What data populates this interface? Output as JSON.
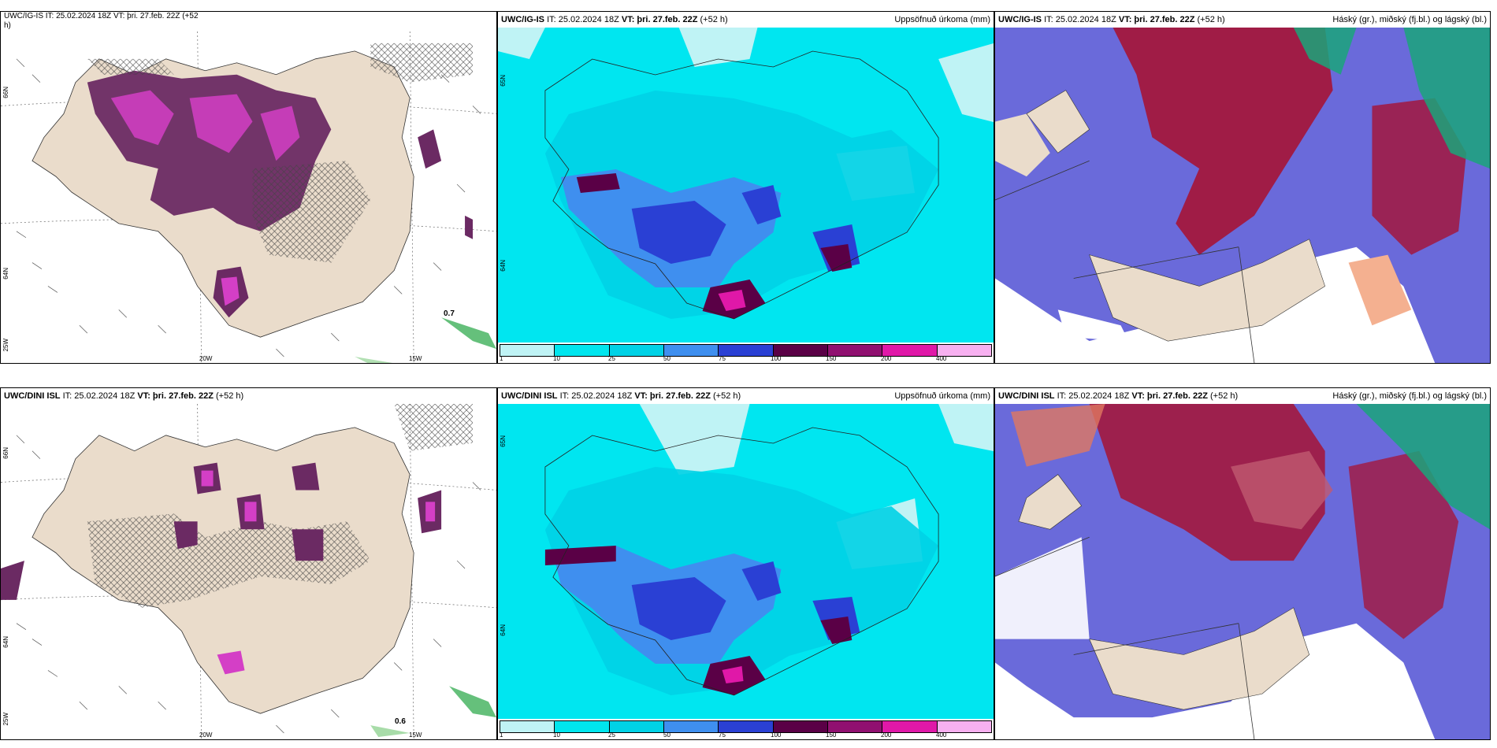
{
  "rows": [
    {
      "panels": [
        {
          "header": {
            "model": "",
            "init": "",
            "valid": "",
            "lead": "",
            "right": ""
          },
          "header_partial": "UWC/IG-IS IT: 25.02.2024 18Z VT: þri. 27.feb. 22Z (+52",
          "header_partial_2": "h)",
          "lat_labels": [
            "66N",
            "64N",
            "25W"
          ],
          "lon_labels": [
            "20W",
            "15W"
          ],
          "marker_value": "0.7"
        },
        {
          "header": {
            "model": "UWC/IG-IS",
            "init": "IT: 25.02.2024 18Z",
            "valid": "VT: þri. 27.feb. 22Z",
            "lead": "(+52 h)",
            "right": "Uppsöfnuð úrkoma (mm)"
          },
          "lat_labels": [
            "65N",
            "64N"
          ]
        },
        {
          "header": {
            "model": "UWC/IG-IS",
            "init": "IT: 25.02.2024 18Z",
            "valid": "VT: þri. 27.feb. 22Z",
            "lead": "(+52 h)",
            "right": "Háský (gr.), miðský (fj.bl.) og lágský (bl.)"
          }
        }
      ]
    },
    {
      "panels": [
        {
          "header": {
            "model": "UWC/DINI ISL",
            "init": "IT: 25.02.2024 18Z",
            "valid": "VT: þri. 27.feb. 22Z",
            "lead": "(+52 h)",
            "right": ""
          },
          "lat_labels": [
            "66N",
            "64N",
            "25W"
          ],
          "lon_labels": [
            "20W",
            "15W"
          ],
          "marker_value": "0.6"
        },
        {
          "header": {
            "model": "UWC/DINI ISL",
            "init": "IT: 25.02.2024 18Z",
            "valid": "VT: þri. 27.feb. 22Z",
            "lead": "(+52 h)",
            "right": "Uppsöfnuð úrkoma (mm)"
          },
          "lat_labels": [
            "65N",
            "64N"
          ]
        },
        {
          "header": {
            "model": "UWC/DINI ISL",
            "init": "IT: 25.02.2024 18Z",
            "valid": "VT: þri. 27.feb. 22Z",
            "lead": "(+52 h)",
            "right": "Háský (gr.), miðský (fj.bl.) og lágský (bl.)"
          }
        }
      ]
    }
  ],
  "precip_legend": {
    "ticks": [
      "1",
      "10",
      "25",
      "50",
      "75",
      "100",
      "150",
      "200",
      "400"
    ],
    "colors": [
      "#bff3f5",
      "#00e6ee",
      "#00d2e6",
      "#3f8fef",
      "#2a40d4",
      "#5a0046",
      "#901070",
      "#e018a8",
      "#f7b0f0"
    ]
  },
  "colors": {
    "land": "#eadccb",
    "precip_purple": "#6b2a63",
    "precip_magenta": "#d43fc6",
    "precip_bg": "#00e6f0",
    "cloud_high": "#a01c46",
    "cloud_mid": "#5a5ad6",
    "cloud_low": "#1aa47a"
  }
}
